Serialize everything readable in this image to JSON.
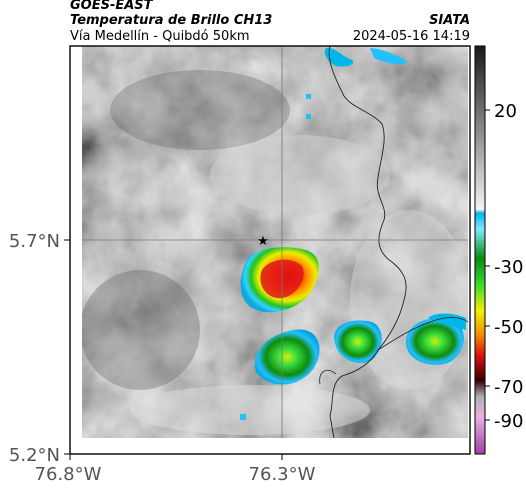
{
  "header": {
    "satellite": "GOES-EAST",
    "product": "Temperatura de Brillo CH13",
    "route": "Vía Medellín - Quibdó 50km",
    "source": "SIATA",
    "datetime": "2024-05-16 14:19"
  },
  "map": {
    "lat_ticks": [
      "5.7°N",
      "5.2°N"
    ],
    "lon_ticks": [
      "76.8°W",
      "76.3°W"
    ],
    "marker": "star-icon"
  },
  "colorbar": {
    "ticks": [
      "20",
      "-30",
      "-50",
      "-70",
      "-90"
    ],
    "colors": {
      "gray_top": "#1a1a1a",
      "gray_bottom": "#ffffff",
      "cyan": "#00b7e8",
      "green": "#1ec21e",
      "yellow": "#f0f000",
      "red": "#d81010",
      "dark": "#3a0000",
      "magenta": "#c060c0"
    }
  }
}
